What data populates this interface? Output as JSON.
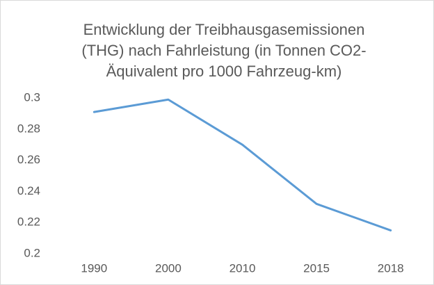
{
  "chart_data": {
    "type": "line",
    "title": [
      "Entwicklung der Treibhausgasemissionen",
      "(THG) nach Fahrleistung (in Tonnen CO2-",
      "Äquivalent pro 1000 Fahrzeug-km)"
    ],
    "categories": [
      "1990",
      "2000",
      "2010",
      "2015",
      "2018"
    ],
    "values": [
      0.291,
      0.299,
      0.27,
      0.232,
      0.215
    ],
    "color": "#5b9bd5",
    "ylim": [
      0.2,
      0.3
    ],
    "yticks": [
      0.2,
      0.22,
      0.24,
      0.26,
      0.28,
      0.3
    ],
    "grid": false
  }
}
